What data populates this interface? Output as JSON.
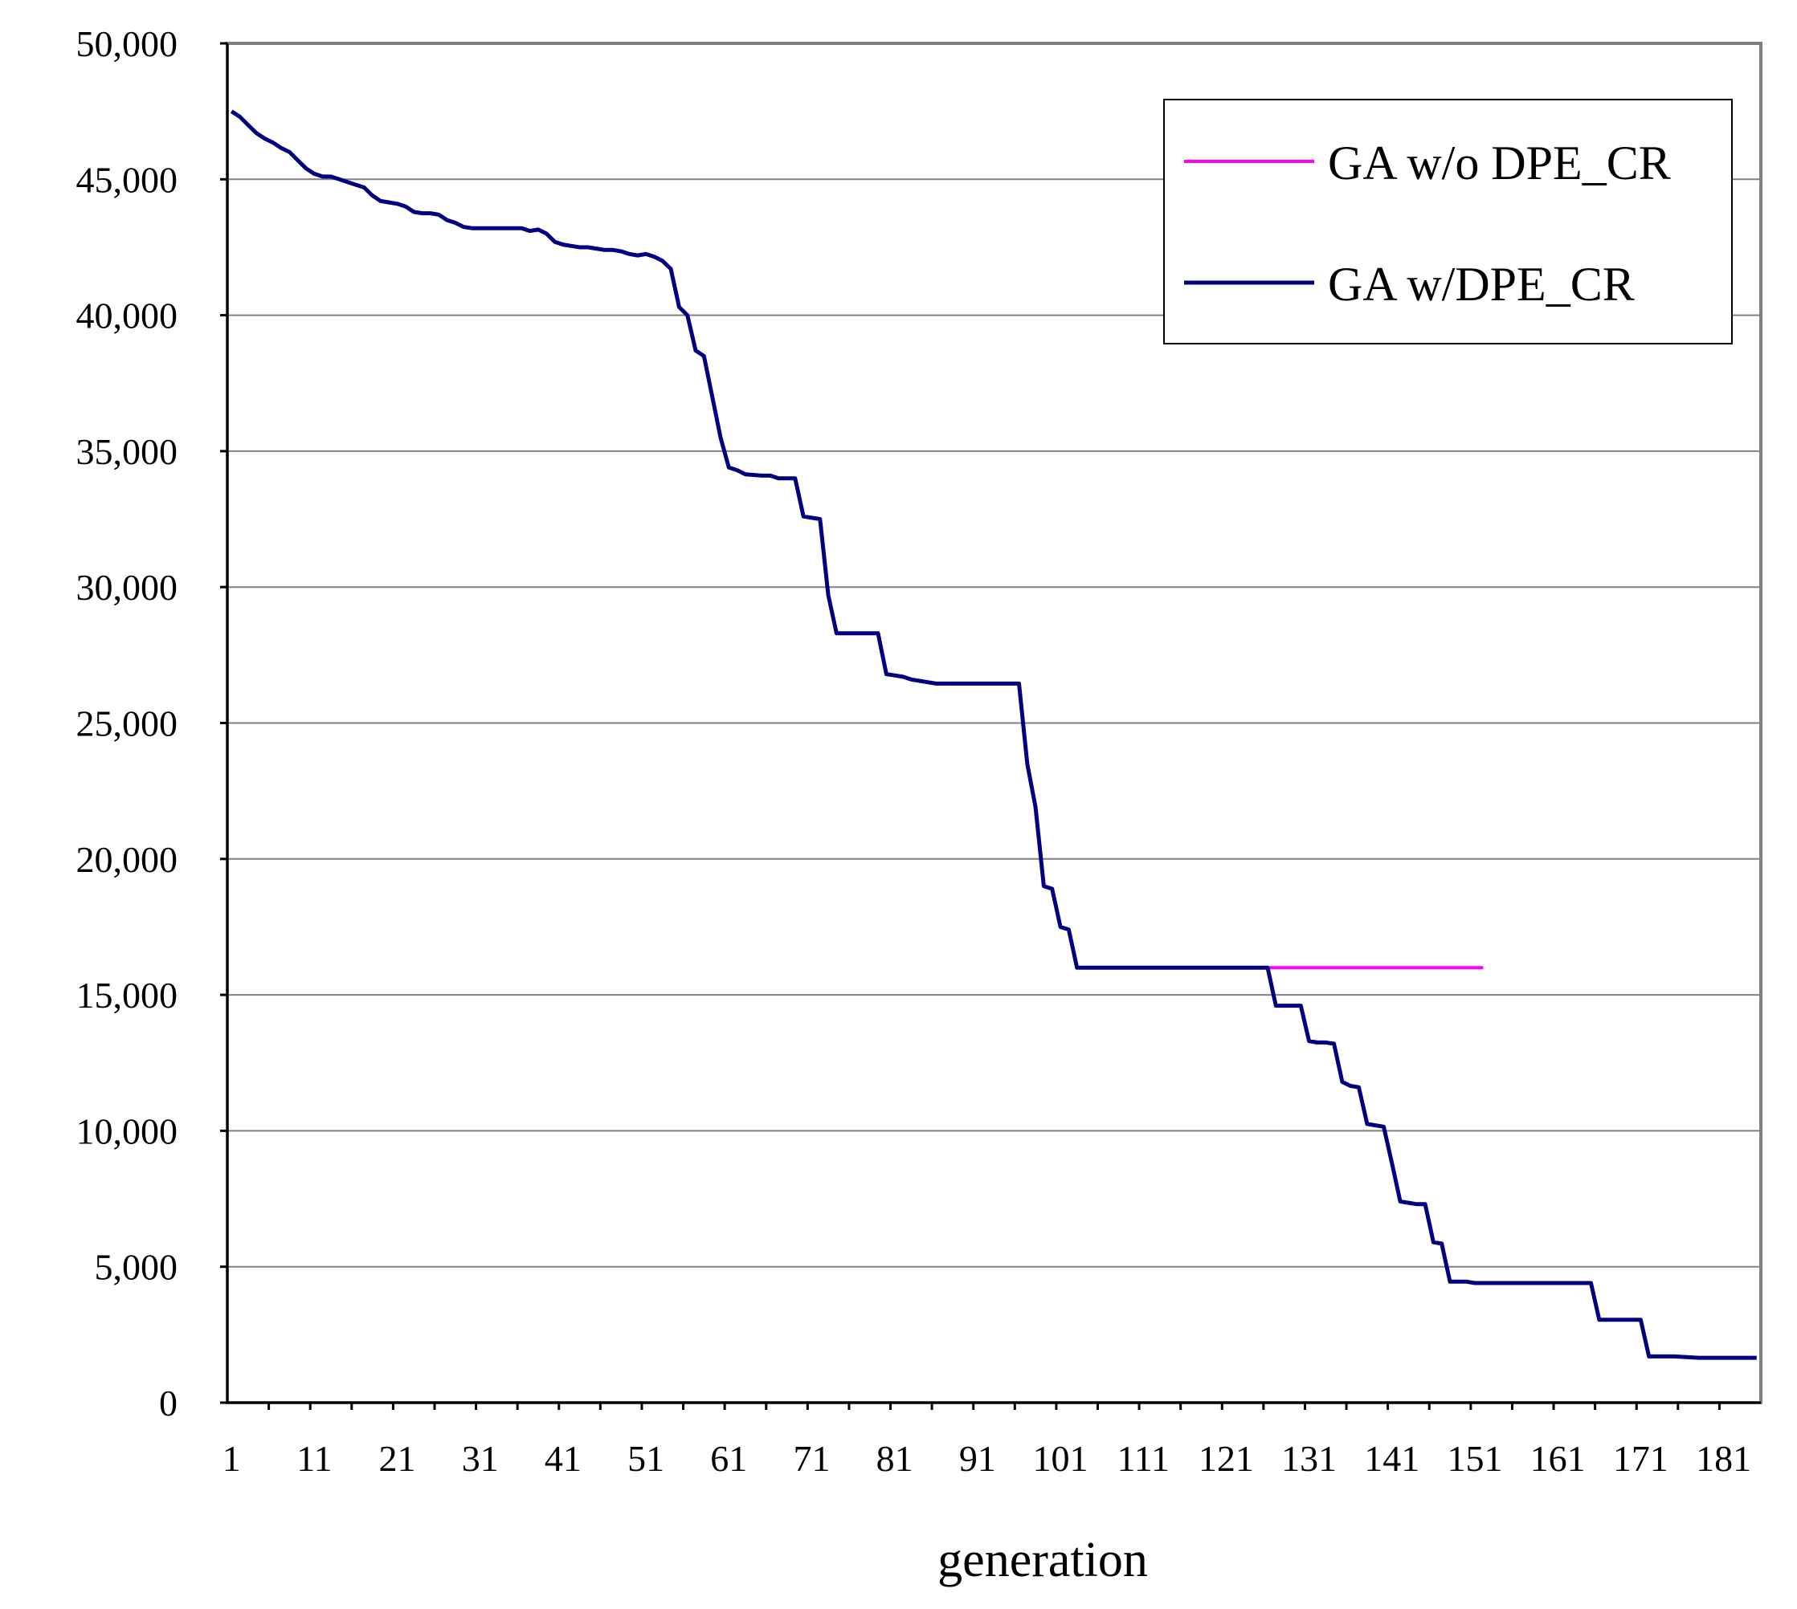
{
  "chart_data": {
    "type": "line",
    "title": "",
    "xlabel": "generation",
    "ylabel": "",
    "xlim": [
      1,
      185
    ],
    "ylim": [
      0,
      50000
    ],
    "x_ticks": [
      1,
      11,
      21,
      31,
      41,
      51,
      61,
      71,
      81,
      91,
      101,
      111,
      121,
      131,
      141,
      151,
      161,
      171,
      181
    ],
    "x_tick_labels": [
      "1",
      "11",
      "21",
      "31",
      "41",
      "51",
      "61",
      "71",
      "81",
      "91",
      "101",
      "111",
      "121",
      "131",
      "141",
      "151",
      "161",
      "171",
      "181"
    ],
    "y_ticks": [
      0,
      5000,
      10000,
      15000,
      20000,
      25000,
      30000,
      35000,
      40000,
      45000,
      50000
    ],
    "y_tick_labels": [
      "0",
      "5,000",
      "10,000",
      "15,000",
      "20,000",
      "25,000",
      "30,000",
      "35,000",
      "40,000",
      "45,000",
      "50,000"
    ],
    "grid": "horizontal",
    "legend_position": "top-right",
    "series": [
      {
        "name": "GA w/o DPE_CR",
        "color": "#ff00ff",
        "points": [
          [
            126,
            16000
          ],
          [
            152,
            16000
          ]
        ]
      },
      {
        "name": "GA w/DPE_CR",
        "color": "#000080",
        "points": [
          [
            1,
            47500
          ],
          [
            2,
            47300
          ],
          [
            3,
            47000
          ],
          [
            4,
            46700
          ],
          [
            5,
            46500
          ],
          [
            6,
            46350
          ],
          [
            7,
            46150
          ],
          [
            8,
            46000
          ],
          [
            9,
            45700
          ],
          [
            10,
            45400
          ],
          [
            11,
            45200
          ],
          [
            12,
            45100
          ],
          [
            13,
            45100
          ],
          [
            14,
            45000
          ],
          [
            15,
            44900
          ],
          [
            16,
            44800
          ],
          [
            17,
            44700
          ],
          [
            18,
            44400
          ],
          [
            19,
            44200
          ],
          [
            20,
            44150
          ],
          [
            21,
            44100
          ],
          [
            22,
            44000
          ],
          [
            23,
            43800
          ],
          [
            24,
            43750
          ],
          [
            25,
            43750
          ],
          [
            26,
            43700
          ],
          [
            27,
            43500
          ],
          [
            28,
            43400
          ],
          [
            29,
            43250
          ],
          [
            30,
            43200
          ],
          [
            31,
            43200
          ],
          [
            36,
            43200
          ],
          [
            37,
            43100
          ],
          [
            38,
            43150
          ],
          [
            39,
            43000
          ],
          [
            40,
            42700
          ],
          [
            41,
            42600
          ],
          [
            42,
            42550
          ],
          [
            43,
            42500
          ],
          [
            44,
            42500
          ],
          [
            45,
            42450
          ],
          [
            46,
            42400
          ],
          [
            47,
            42400
          ],
          [
            48,
            42350
          ],
          [
            49,
            42250
          ],
          [
            50,
            42200
          ],
          [
            51,
            42250
          ],
          [
            52,
            42150
          ],
          [
            53,
            42000
          ],
          [
            54,
            41700
          ],
          [
            55,
            40300
          ],
          [
            56,
            40000
          ],
          [
            57,
            38700
          ],
          [
            58,
            38500
          ],
          [
            59,
            37000
          ],
          [
            60,
            35500
          ],
          [
            61,
            34400
          ],
          [
            62,
            34300
          ],
          [
            63,
            34150
          ],
          [
            65,
            34100
          ],
          [
            66,
            34100
          ],
          [
            67,
            34000
          ],
          [
            68,
            34000
          ],
          [
            69,
            34000
          ],
          [
            70,
            32600
          ],
          [
            71,
            32550
          ],
          [
            72,
            32500
          ],
          [
            73,
            29700
          ],
          [
            74,
            28300
          ],
          [
            75,
            28300
          ],
          [
            79,
            28300
          ],
          [
            80,
            26800
          ],
          [
            81,
            26750
          ],
          [
            82,
            26700
          ],
          [
            83,
            26600
          ],
          [
            84,
            26550
          ],
          [
            85,
            26500
          ],
          [
            86,
            26450
          ],
          [
            88,
            26450
          ],
          [
            91,
            26450
          ],
          [
            94,
            26450
          ],
          [
            96,
            26450
          ],
          [
            97,
            23500
          ],
          [
            98,
            21900
          ],
          [
            99,
            19000
          ],
          [
            100,
            18900
          ],
          [
            101,
            17500
          ],
          [
            102,
            17400
          ],
          [
            103,
            16000
          ],
          [
            104,
            16000
          ],
          [
            110,
            16000
          ],
          [
            120,
            16000
          ],
          [
            126,
            16000
          ],
          [
            127,
            14600
          ],
          [
            128,
            14600
          ],
          [
            129,
            14600
          ],
          [
            130,
            14600
          ],
          [
            131,
            13300
          ],
          [
            132,
            13250
          ],
          [
            133,
            13250
          ],
          [
            134,
            13200
          ],
          [
            135,
            11800
          ],
          [
            136,
            11650
          ],
          [
            137,
            11600
          ],
          [
            138,
            10250
          ],
          [
            139,
            10200
          ],
          [
            140,
            10150
          ],
          [
            141,
            8800
          ],
          [
            142,
            7400
          ],
          [
            143,
            7350
          ],
          [
            144,
            7300
          ],
          [
            145,
            7300
          ],
          [
            146,
            5900
          ],
          [
            147,
            5850
          ],
          [
            148,
            4450
          ],
          [
            150,
            4450
          ],
          [
            151,
            4400
          ],
          [
            155,
            4400
          ],
          [
            160,
            4400
          ],
          [
            165,
            4400
          ],
          [
            166,
            3050
          ],
          [
            167,
            3050
          ],
          [
            170,
            3050
          ],
          [
            171,
            3050
          ],
          [
            172,
            1700
          ],
          [
            175,
            1700
          ],
          [
            178,
            1650
          ],
          [
            180,
            1650
          ],
          [
            185,
            1650
          ]
        ]
      }
    ]
  }
}
